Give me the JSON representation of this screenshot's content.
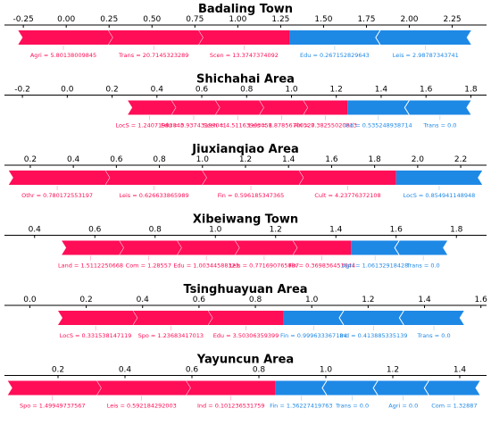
{
  "colors": {
    "positive": "#ff0d57",
    "negative": "#1e88e5",
    "axis": "#000000",
    "text_pos": "#ff0d57",
    "text_neg": "#1e88e5"
  },
  "chart_data": [
    {
      "type": "force",
      "title": "Badaling Town",
      "xlim": [
        -0.36,
        2.45
      ],
      "ticks": [
        "-0.25",
        "0.00",
        "0.25",
        "0.50",
        "0.75",
        "1.00",
        "1.25",
        "1.50",
        "1.75",
        "2.00",
        "2.25"
      ],
      "tick_values": [
        -0.25,
        0.0,
        0.25,
        0.5,
        0.75,
        1.0,
        1.25,
        1.5,
        1.75,
        2.0,
        2.25
      ],
      "split": 1.3,
      "positive_range": [
        -0.28,
        1.3
      ],
      "negative_range": [
        1.3,
        2.36
      ],
      "positive_labels": [
        "Agri = 5.80138009845",
        "Trans = 20.7145323289",
        "Scen = 13.3747374092"
      ],
      "negative_labels": [
        "Edu = 0.267152829643",
        "Leis = 2.98787343741"
      ]
    },
    {
      "type": "force",
      "title": "Shichahai Area",
      "xlim": [
        -0.28,
        1.87
      ],
      "ticks": [
        "-0.2",
        "0.0",
        "0.2",
        "0.4",
        "0.6",
        "0.8",
        "1.0",
        "1.2",
        "1.4",
        "1.6",
        "1.8"
      ],
      "tick_values": [
        -0.2,
        0.0,
        0.2,
        0.4,
        0.6,
        0.8,
        1.0,
        1.2,
        1.4,
        1.6,
        1.8
      ],
      "split": 1.25,
      "positive_range": [
        0.27,
        1.25
      ],
      "negative_range": [
        1.25,
        1.8
      ],
      "positive_labels": [
        "LocS = 1.24071983843",
        "Edu = 0.93743187041",
        "Scen = 4.51163903058",
        "Leis = 1.87856700527",
        "Fin = 0.38255020813"
      ],
      "negative_labels": [
        "Ind = 0.535248938714",
        "Trans = 0.0"
      ]
    },
    {
      "type": "force",
      "title": "Jiuxianqiao Area",
      "xlim": [
        0.08,
        2.32
      ],
      "ticks": [
        "0.2",
        "0.4",
        "0.6",
        "0.8",
        "1.0",
        "1.2",
        "1.4",
        "1.6",
        "1.8",
        "2.0",
        "2.2"
      ],
      "tick_values": [
        0.2,
        0.4,
        0.6,
        0.8,
        1.0,
        1.2,
        1.4,
        1.6,
        1.8,
        2.0,
        2.2
      ],
      "split": 1.9,
      "positive_range": [
        0.1,
        1.9
      ],
      "negative_range": [
        1.9,
        2.3
      ],
      "positive_labels": [
        "Othr = 0.780172553197",
        "Leis = 0.626633865989",
        "Fin = 0.596185347365",
        "Cult = 4.23776372108"
      ],
      "negative_labels": [
        "LocS = 0.854941148948"
      ]
    },
    {
      "type": "force",
      "title": "Xibeiwang Town",
      "xlim": [
        0.3,
        1.9
      ],
      "ticks": [
        "0.4",
        "0.6",
        "0.8",
        "1.0",
        "1.2",
        "1.4",
        "1.6",
        "1.8"
      ],
      "tick_values": [
        0.4,
        0.6,
        0.8,
        1.0,
        1.2,
        1.4,
        1.6,
        1.8
      ],
      "split": 1.45,
      "positive_range": [
        0.49,
        1.45
      ],
      "negative_range": [
        1.45,
        1.77
      ],
      "positive_labels": [
        "Land = 1.5112250668",
        "Com = 1.28557",
        "Edu = 1.00344588323",
        "Leis = 0.771690765887",
        "Fin = 0.369836451644"
      ],
      "negative_labels": [
        "Agri = 1.06132918428",
        "Trans = 0.0"
      ]
    },
    {
      "type": "force",
      "title": "Tsinghuayuan Area",
      "xlim": [
        -0.09,
        1.62
      ],
      "ticks": [
        "0.0",
        "0.2",
        "0.4",
        "0.6",
        "0.8",
        "1.0",
        "1.2",
        "1.4",
        "1.6"
      ],
      "tick_values": [
        0.0,
        0.2,
        0.4,
        0.6,
        0.8,
        1.0,
        1.2,
        1.4,
        1.6
      ],
      "split": 0.9,
      "positive_range": [
        0.1,
        0.9
      ],
      "negative_range": [
        0.9,
        1.54
      ],
      "positive_labels": [
        "LocS = 0.331538147119",
        "Spo = 1.23683417013",
        "Edu = 3.50306359399"
      ],
      "negative_labels": [
        "Fin = 0.999633367184",
        "Ind = 0.413885335139",
        "Trans = 0.0"
      ]
    },
    {
      "type": "force",
      "title": "Yayuncun Area",
      "xlim": [
        0.04,
        1.48
      ],
      "ticks": [
        "0.2",
        "0.4",
        "0.6",
        "0.8",
        "1.0",
        "1.2",
        "1.4"
      ],
      "tick_values": [
        0.2,
        0.4,
        0.6,
        0.8,
        1.0,
        1.2,
        1.4
      ],
      "split": 0.85,
      "positive_range": [
        0.05,
        0.85
      ],
      "negative_range": [
        0.85,
        1.46
      ],
      "positive_labels": [
        "Spo = 1.49949737567",
        "Leis = 0.592184292003",
        "Ind = 0.101236531759"
      ],
      "negative_labels": [
        "Fin = 1.36227419763",
        "Trans = 0.0",
        "Agri = 0.0",
        "Com = 1.32887"
      ]
    }
  ]
}
